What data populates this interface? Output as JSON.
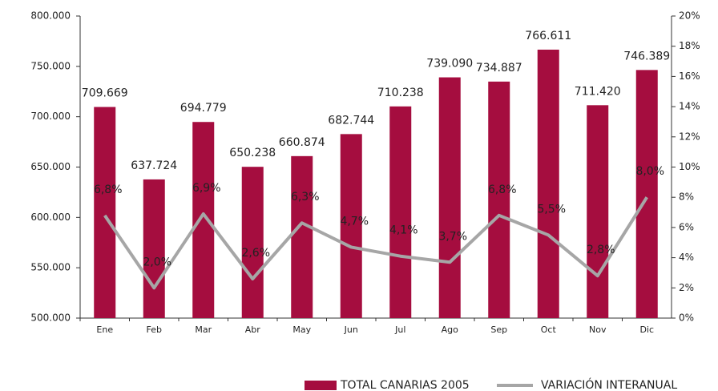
{
  "chart_data": {
    "type": "bar",
    "categories": [
      "Ene",
      "Feb",
      "Mar",
      "Abr",
      "May",
      "Jun",
      "Jul",
      "Ago",
      "Sep",
      "Oct",
      "Nov",
      "Dic"
    ],
    "series": [
      {
        "name": "TOTAL CANARIAS 2005",
        "type": "bar",
        "color": "#a50d3f",
        "values": [
          709669,
          637724,
          694779,
          650238,
          660874,
          682744,
          710238,
          739090,
          734887,
          766611,
          711420,
          746389
        ],
        "value_labels": [
          "709.669",
          "637.724",
          "694.779",
          "650.238",
          "660.874",
          "682.744",
          "710.238",
          "739.090",
          "734.887",
          "766.611",
          "711.420",
          "746.389"
        ]
      },
      {
        "name": "VARIACIÓN INTERANUAL",
        "type": "line",
        "axis": "y2",
        "color": "#a6a6a6",
        "values": [
          6.8,
          2.0,
          6.9,
          2.6,
          6.3,
          4.7,
          4.1,
          3.7,
          6.8,
          5.5,
          2.8,
          8.0
        ],
        "value_labels": [
          "6,8%",
          "2,0%",
          "6,9%",
          "2,6%",
          "6,3%",
          "4,7%",
          "4,1%",
          "3,7%",
          "6,8%",
          "5,5%",
          "2,8%",
          "8,0%"
        ]
      }
    ],
    "ylim": [
      500000,
      800000
    ],
    "yticks": [
      {
        "value": 500000,
        "label": "500.000"
      },
      {
        "value": 550000,
        "label": "550.000"
      },
      {
        "value": 600000,
        "label": "600.000"
      },
      {
        "value": 650000,
        "label": "650.000"
      },
      {
        "value": 700000,
        "label": "700.000"
      },
      {
        "value": 750000,
        "label": "750.000"
      },
      {
        "value": 800000,
        "label": "800.000"
      }
    ],
    "y2lim": [
      0,
      20
    ],
    "y2ticks": [
      {
        "value": 0,
        "label": "0%"
      },
      {
        "value": 2,
        "label": "2%"
      },
      {
        "value": 4,
        "label": "4%"
      },
      {
        "value": 6,
        "label": "6%"
      },
      {
        "value": 8,
        "label": "8%"
      },
      {
        "value": 10,
        "label": "10%"
      },
      {
        "value": 12,
        "label": "12%"
      },
      {
        "value": 14,
        "label": "14%"
      },
      {
        "value": 16,
        "label": "16%"
      },
      {
        "value": 18,
        "label": "18%"
      },
      {
        "value": 20,
        "label": "20%"
      }
    ],
    "legend": "bottom"
  }
}
